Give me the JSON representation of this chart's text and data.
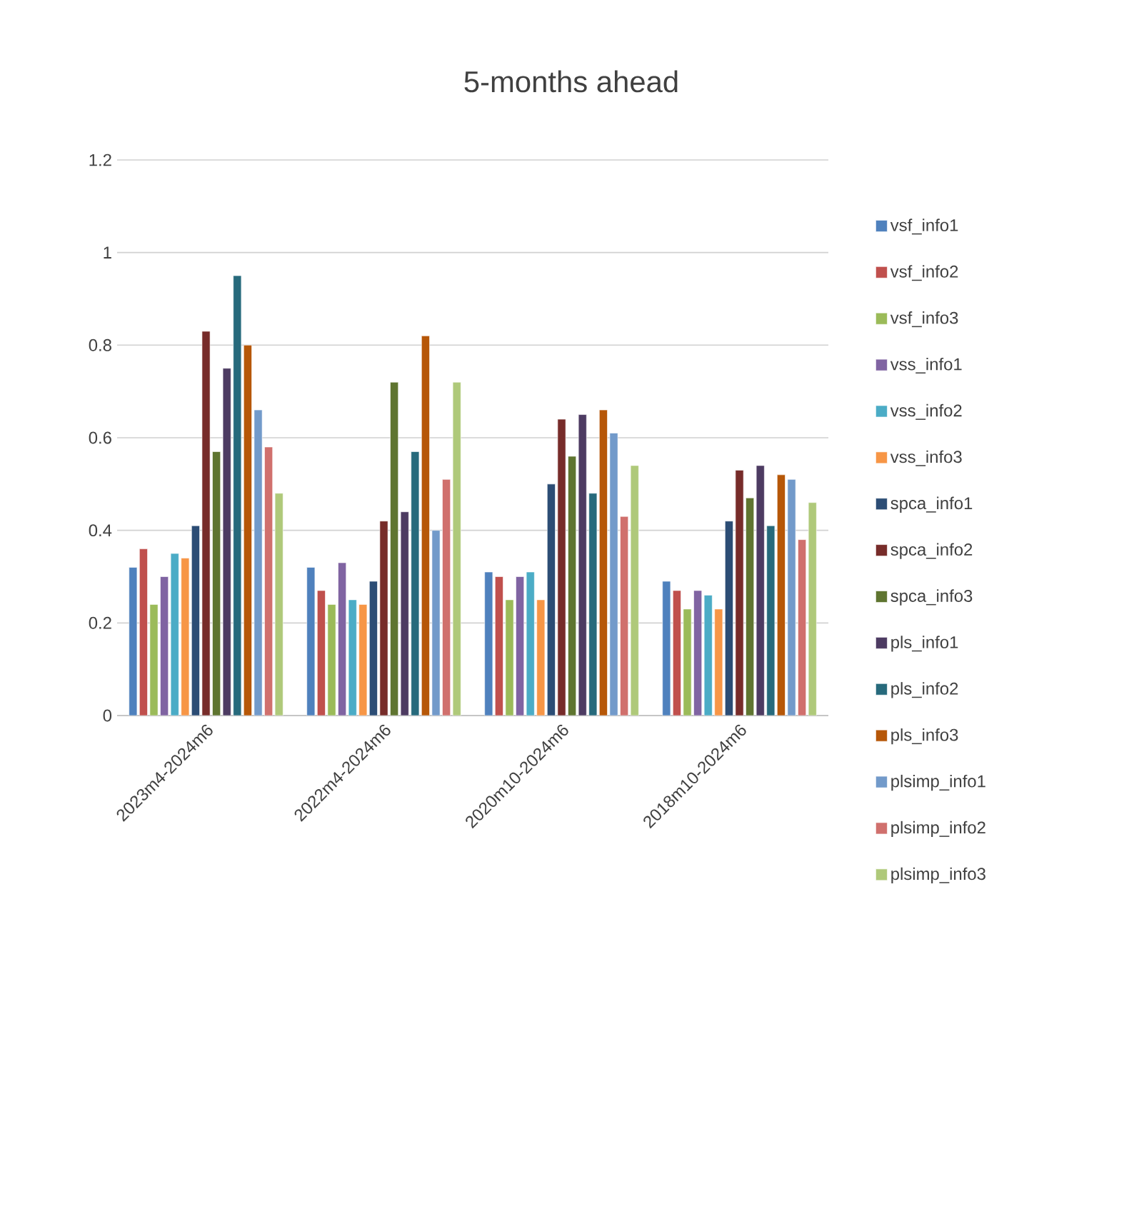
{
  "chart_data": {
    "type": "bar",
    "title": "5-months ahead",
    "categories": [
      "2023m4-2024m6",
      "2022m4-2024m6",
      "2020m10-2024m6",
      "2018m10-2024m6"
    ],
    "series": [
      {
        "name": "vsf_info1",
        "color": "#4f81bd",
        "values": [
          0.32,
          0.32,
          0.31,
          0.29
        ]
      },
      {
        "name": "vsf_info2",
        "color": "#c0504d",
        "values": [
          0.36,
          0.27,
          0.3,
          0.27
        ]
      },
      {
        "name": "vsf_info3",
        "color": "#9bbb59",
        "values": [
          0.24,
          0.24,
          0.25,
          0.23
        ]
      },
      {
        "name": "vss_info1",
        "color": "#8064a2",
        "values": [
          0.3,
          0.33,
          0.3,
          0.27
        ]
      },
      {
        "name": "vss_info2",
        "color": "#4bacc6",
        "values": [
          0.35,
          0.25,
          0.31,
          0.26
        ]
      },
      {
        "name": "vss_info3",
        "color": "#f79646",
        "values": [
          0.34,
          0.24,
          0.25,
          0.23
        ]
      },
      {
        "name": "spca_info1",
        "color": "#2c4d75",
        "values": [
          0.41,
          0.29,
          0.5,
          0.42
        ]
      },
      {
        "name": "spca_info2",
        "color": "#772c2a",
        "values": [
          0.83,
          0.42,
          0.64,
          0.53
        ]
      },
      {
        "name": "spca_info3",
        "color": "#5f7530",
        "values": [
          0.57,
          0.72,
          0.56,
          0.47
        ]
      },
      {
        "name": "pls_info1",
        "color": "#4d3b62",
        "values": [
          0.75,
          0.44,
          0.65,
          0.54
        ]
      },
      {
        "name": "pls_info2",
        "color": "#276a7c",
        "values": [
          0.95,
          0.57,
          0.48,
          0.41
        ]
      },
      {
        "name": "pls_info3",
        "color": "#b65708",
        "values": [
          0.8,
          0.82,
          0.66,
          0.52
        ]
      },
      {
        "name": "plsimp_info1",
        "color": "#729aca",
        "values": [
          0.66,
          0.4,
          0.61,
          0.51
        ]
      },
      {
        "name": "plsimp_info2",
        "color": "#d0706d",
        "values": [
          0.58,
          0.51,
          0.43,
          0.38
        ]
      },
      {
        "name": "plsimp_info3",
        "color": "#afc97a",
        "values": [
          0.48,
          0.72,
          0.54,
          0.46
        ]
      }
    ],
    "ylim": [
      0,
      1.2
    ],
    "yticks": [
      0,
      0.2,
      0.4,
      0.6,
      0.8,
      1,
      1.2
    ],
    "grid": "y",
    "legend": "right"
  }
}
